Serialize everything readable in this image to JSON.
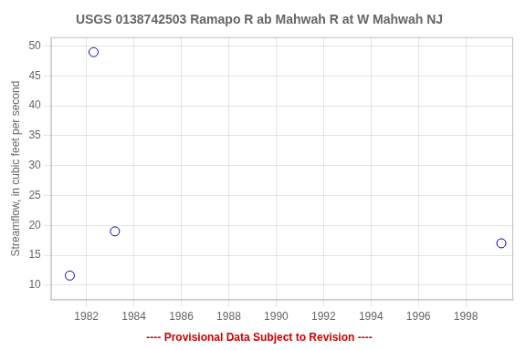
{
  "chart_data": {
    "type": "scatter",
    "title": "USGS 0138742503 Ramapo R ab Mahwah R at W Mahwah NJ",
    "ylabel": "Streamflow, in cubic feet per second",
    "x": [
      1981.3,
      1982.3,
      1983.2,
      1999.5
    ],
    "values": [
      11.6,
      49.0,
      19.0,
      17.0
    ],
    "color": "#0000bb",
    "marker": "open circle",
    "xlim": [
      1980.5,
      2000.0
    ],
    "ylim": [
      7.5,
      51.5
    ],
    "xticks": [
      1982,
      1984,
      1986,
      1988,
      1990,
      1992,
      1994,
      1996,
      1998
    ],
    "yticks": [
      10,
      15,
      20,
      25,
      30,
      35,
      40,
      45,
      50
    ],
    "grid": true,
    "annotations": [
      {
        "text": "---- Provisional Data Subject to Revision ----",
        "color": "#cc0000"
      }
    ]
  }
}
